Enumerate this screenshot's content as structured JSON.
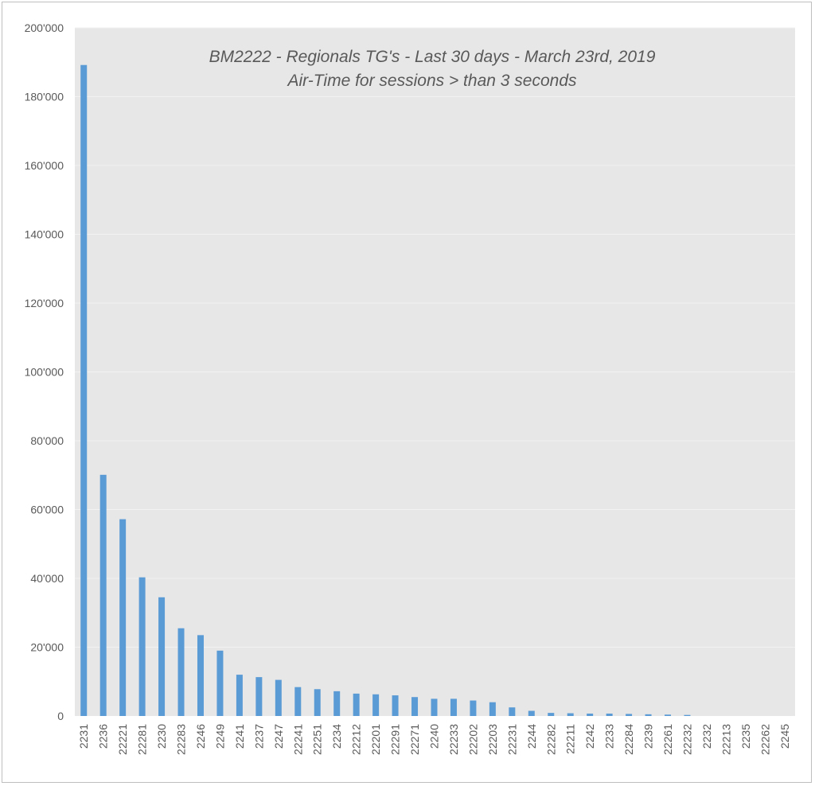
{
  "chart_data": {
    "type": "bar",
    "title": "BM2222 - Regionals TG's - Last 30 days -  March 23rd, 2019",
    "subtitle": "Air-Time for sessions > than 3 seconds",
    "xlabel": "",
    "ylabel": "",
    "ylim": [
      0,
      200000
    ],
    "y_ticks": [
      0,
      20000,
      40000,
      60000,
      80000,
      100000,
      120000,
      140000,
      160000,
      180000,
      200000
    ],
    "y_tick_labels": [
      "0",
      "20'000",
      "40'000",
      "60'000",
      "80'000",
      "100'000",
      "120'000",
      "140'000",
      "160'000",
      "180'000",
      "200'000"
    ],
    "grid": true,
    "legend": "none",
    "bar_color": "#5b9bd5",
    "plot_background": "#e7e7e7",
    "gridline_color": "#f2f2f2",
    "categories": [
      "2231",
      "2236",
      "22221",
      "22281",
      "2230",
      "22283",
      "2246",
      "2249",
      "2241",
      "2237",
      "2247",
      "22241",
      "22251",
      "2234",
      "22212",
      "22201",
      "22291",
      "22271",
      "2240",
      "22233",
      "22202",
      "22203",
      "22231",
      "2244",
      "22282",
      "22211",
      "2242",
      "2233",
      "22284",
      "2239",
      "22261",
      "22232",
      "2232",
      "22213",
      "2235",
      "22262",
      "2245"
    ],
    "values": [
      189200,
      70100,
      57200,
      40300,
      34500,
      25500,
      23500,
      19000,
      12000,
      11300,
      10500,
      8400,
      7800,
      7200,
      6500,
      6300,
      6000,
      5500,
      5000,
      5000,
      4500,
      4000,
      2500,
      1500,
      900,
      800,
      700,
      700,
      600,
      500,
      400,
      300,
      0,
      0,
      0,
      0,
      0
    ]
  }
}
